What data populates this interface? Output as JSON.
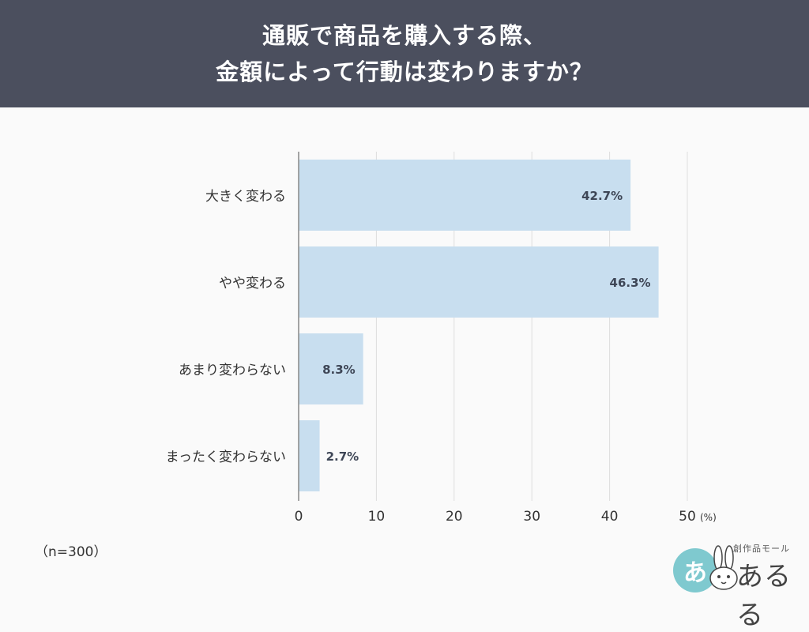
{
  "header": {
    "title_line1": "通販で商品を購入する際、",
    "title_line2": "金額によって行動は変わりますか？"
  },
  "chart_data": {
    "type": "bar",
    "orientation": "horizontal",
    "categories": [
      "大きく変わる",
      "やや変わる",
      "あまり変わらない",
      "まったく変わらない"
    ],
    "values": [
      42.7,
      46.3,
      8.3,
      2.7
    ],
    "value_labels": [
      "42.7%",
      "46.3%",
      "8.3%",
      "2.7%"
    ],
    "xlim": [
      0,
      50
    ],
    "x_ticks": [
      0,
      10,
      20,
      30,
      40,
      50
    ],
    "x_unit": "(%)",
    "grid": true,
    "bar_color": "#c8deef"
  },
  "note": "（n=300）",
  "logo": {
    "circle_text": "あ",
    "sub_text": "創作品モール",
    "main_text": "あるる"
  }
}
